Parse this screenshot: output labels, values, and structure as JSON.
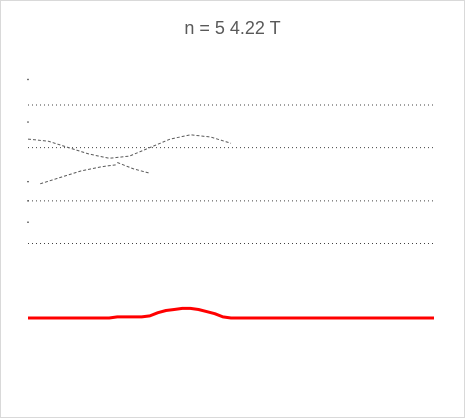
{
  "chart_data": {
    "type": "line",
    "title": "n = 5   4.22 T",
    "xlim": [
      0,
      100
    ],
    "dotted_lines": [
      {
        "name": "",
        "y": 1.0
      },
      {
        "name": "",
        "y": 0.8
      },
      {
        "name": "",
        "y": 0.55
      },
      {
        "name": "",
        "y": 0.35
      }
    ],
    "series": [
      {
        "name": "",
        "color": "#595959",
        "style": "dashed",
        "x": [
          0,
          5,
          10,
          15,
          20,
          25,
          30,
          35,
          40,
          45,
          50
        ],
        "y": [
          0.84,
          0.83,
          0.8,
          0.77,
          0.75,
          0.76,
          0.8,
          0.84,
          0.86,
          0.85,
          0.82
        ]
      },
      {
        "name": "",
        "color": "#595959",
        "style": "dashed",
        "x": [
          3,
          8,
          13,
          18,
          22
        ],
        "y": [
          0.63,
          0.66,
          0.69,
          0.71,
          0.72
        ]
      },
      {
        "name": "",
        "color": "#595959",
        "style": "dashed",
        "x": [
          22,
          26,
          30
        ],
        "y": [
          0.73,
          0.7,
          0.68
        ]
      },
      {
        "name": "",
        "color": "#ff0000",
        "style": "solid",
        "x": [
          0,
          20,
          22,
          28,
          30,
          32,
          34,
          36,
          38,
          40,
          42,
          44,
          46,
          48,
          50,
          100
        ],
        "y": [
          0.0,
          0.0,
          0.005,
          0.005,
          0.01,
          0.025,
          0.035,
          0.04,
          0.045,
          0.045,
          0.04,
          0.03,
          0.02,
          0.005,
          0.0,
          0.0
        ]
      }
    ]
  }
}
